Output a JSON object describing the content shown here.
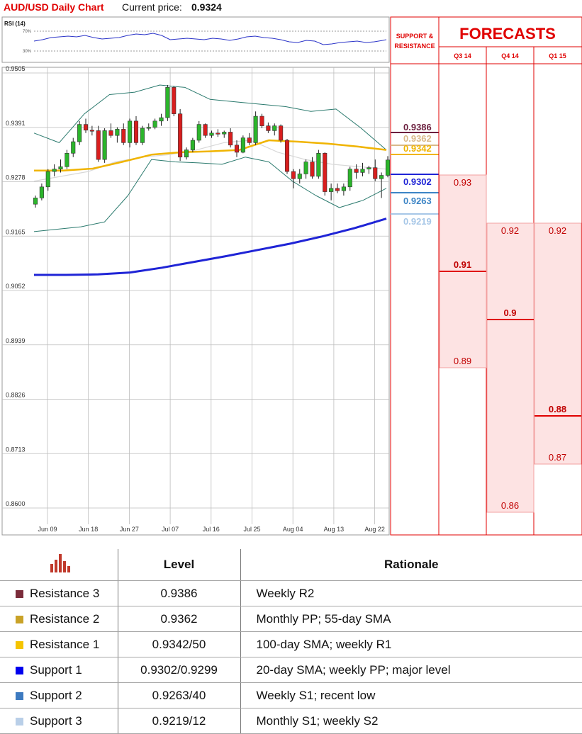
{
  "header": {
    "title": "AUD/USD Daily Chart",
    "price_label": "Current price:",
    "price_value": "0.9324"
  },
  "rsi_panel": {
    "label": "RSI (14)",
    "levels": [
      "70%",
      "30%"
    ]
  },
  "support_resistance_header": "SUPPORT & RESISTANCE",
  "forecasts_title": "FORECASTS",
  "chart_data": [
    {
      "type": "candlestick",
      "title": "AUD/USD Daily Chart",
      "y_ticks": [
        "0.9505",
        "0.9391",
        "0.9278",
        "0.9165",
        "0.9052",
        "0.8939",
        "0.8826",
        "0.8713",
        "0.8600"
      ],
      "ylim": [
        0.86,
        0.9505
      ],
      "x_ticks": [
        "Jun 09",
        "Jun 18",
        "Jun 27",
        "Jul 07",
        "Jul 16",
        "Jul 25",
        "Aug 04",
        "Aug 13",
        "Aug 22"
      ],
      "grid": true,
      "candles": [
        {
          "o": 0.9232,
          "h": 0.925,
          "l": 0.9225,
          "c": 0.9245
        },
        {
          "o": 0.9245,
          "h": 0.9275,
          "l": 0.924,
          "c": 0.9268
        },
        {
          "o": 0.9268,
          "h": 0.9305,
          "l": 0.926,
          "c": 0.93
        },
        {
          "o": 0.93,
          "h": 0.9315,
          "l": 0.929,
          "c": 0.9305
        },
        {
          "o": 0.9305,
          "h": 0.9325,
          "l": 0.9298,
          "c": 0.931
        },
        {
          "o": 0.931,
          "h": 0.9345,
          "l": 0.9305,
          "c": 0.9338
        },
        {
          "o": 0.9338,
          "h": 0.937,
          "l": 0.933,
          "c": 0.9362
        },
        {
          "o": 0.9362,
          "h": 0.9405,
          "l": 0.9355,
          "c": 0.9398
        },
        {
          "o": 0.9398,
          "h": 0.941,
          "l": 0.938,
          "c": 0.9386
        },
        {
          "o": 0.9386,
          "h": 0.9395,
          "l": 0.9375,
          "c": 0.9385
        },
        {
          "o": 0.9385,
          "h": 0.9395,
          "l": 0.932,
          "c": 0.9325
        },
        {
          "o": 0.9325,
          "h": 0.939,
          "l": 0.9318,
          "c": 0.9385
        },
        {
          "o": 0.9385,
          "h": 0.94,
          "l": 0.937,
          "c": 0.9375
        },
        {
          "o": 0.9375,
          "h": 0.9392,
          "l": 0.936,
          "c": 0.9388
        },
        {
          "o": 0.9388,
          "h": 0.94,
          "l": 0.9355,
          "c": 0.936
        },
        {
          "o": 0.936,
          "h": 0.941,
          "l": 0.935,
          "c": 0.9405
        },
        {
          "o": 0.9405,
          "h": 0.9415,
          "l": 0.9355,
          "c": 0.936
        },
        {
          "o": 0.936,
          "h": 0.9395,
          "l": 0.9355,
          "c": 0.939
        },
        {
          "o": 0.939,
          "h": 0.94,
          "l": 0.9385,
          "c": 0.9392
        },
        {
          "o": 0.9392,
          "h": 0.941,
          "l": 0.9388,
          "c": 0.9405
        },
        {
          "o": 0.9405,
          "h": 0.942,
          "l": 0.9395,
          "c": 0.9412
        },
        {
          "o": 0.9412,
          "h": 0.948,
          "l": 0.9405,
          "c": 0.9475
        },
        {
          "o": 0.9475,
          "h": 0.9478,
          "l": 0.9415,
          "c": 0.942
        },
        {
          "o": 0.942,
          "h": 0.943,
          "l": 0.9322,
          "c": 0.933
        },
        {
          "o": 0.933,
          "h": 0.935,
          "l": 0.9325,
          "c": 0.9345
        },
        {
          "o": 0.9345,
          "h": 0.937,
          "l": 0.934,
          "c": 0.9365
        },
        {
          "o": 0.9365,
          "h": 0.9405,
          "l": 0.936,
          "c": 0.9398
        },
        {
          "o": 0.9398,
          "h": 0.94,
          "l": 0.937,
          "c": 0.9375
        },
        {
          "o": 0.9375,
          "h": 0.9385,
          "l": 0.937,
          "c": 0.938
        },
        {
          "o": 0.938,
          "h": 0.9388,
          "l": 0.9372,
          "c": 0.9378
        },
        {
          "o": 0.9378,
          "h": 0.9385,
          "l": 0.937,
          "c": 0.9382
        },
        {
          "o": 0.9382,
          "h": 0.939,
          "l": 0.935,
          "c": 0.9355
        },
        {
          "o": 0.9355,
          "h": 0.9365,
          "l": 0.933,
          "c": 0.934
        },
        {
          "o": 0.934,
          "h": 0.9375,
          "l": 0.9338,
          "c": 0.937
        },
        {
          "o": 0.937,
          "h": 0.938,
          "l": 0.9355,
          "c": 0.936
        },
        {
          "o": 0.936,
          "h": 0.9425,
          "l": 0.9355,
          "c": 0.9415
        },
        {
          "o": 0.9415,
          "h": 0.942,
          "l": 0.939,
          "c": 0.9395
        },
        {
          "o": 0.9395,
          "h": 0.9402,
          "l": 0.938,
          "c": 0.9385
        },
        {
          "o": 0.9385,
          "h": 0.94,
          "l": 0.9375,
          "c": 0.9395
        },
        {
          "o": 0.9395,
          "h": 0.9398,
          "l": 0.936,
          "c": 0.9365
        },
        {
          "o": 0.9365,
          "h": 0.9368,
          "l": 0.9295,
          "c": 0.93
        },
        {
          "o": 0.93,
          "h": 0.9305,
          "l": 0.9265,
          "c": 0.9285
        },
        {
          "o": 0.9285,
          "h": 0.9305,
          "l": 0.9275,
          "c": 0.9295
        },
        {
          "o": 0.9295,
          "h": 0.9325,
          "l": 0.9285,
          "c": 0.932
        },
        {
          "o": 0.932,
          "h": 0.933,
          "l": 0.9285,
          "c": 0.929
        },
        {
          "o": 0.929,
          "h": 0.9345,
          "l": 0.9285,
          "c": 0.9338
        },
        {
          "o": 0.9338,
          "h": 0.934,
          "l": 0.925,
          "c": 0.9258
        },
        {
          "o": 0.9258,
          "h": 0.9275,
          "l": 0.924,
          "c": 0.9265
        },
        {
          "o": 0.9265,
          "h": 0.9275,
          "l": 0.9255,
          "c": 0.926
        },
        {
          "o": 0.926,
          "h": 0.9275,
          "l": 0.925,
          "c": 0.9268
        },
        {
          "o": 0.9268,
          "h": 0.931,
          "l": 0.926,
          "c": 0.9305
        },
        {
          "o": 0.9305,
          "h": 0.9315,
          "l": 0.9285,
          "c": 0.9298
        },
        {
          "o": 0.9298,
          "h": 0.9318,
          "l": 0.929,
          "c": 0.9305
        },
        {
          "o": 0.9305,
          "h": 0.9312,
          "l": 0.9295,
          "c": 0.9308
        },
        {
          "o": 0.9308,
          "h": 0.9325,
          "l": 0.928,
          "c": 0.9285
        },
        {
          "o": 0.9285,
          "h": 0.9298,
          "l": 0.9245,
          "c": 0.9292
        },
        {
          "o": 0.9292,
          "h": 0.9332,
          "l": 0.9288,
          "c": 0.9324
        }
      ],
      "indicators": {
        "sma_200": {
          "color": "#1f24d6",
          "values": [
            0.9085,
            0.9085,
            0.9086,
            0.909,
            0.91,
            0.9112,
            0.9124,
            0.9137,
            0.915,
            0.9165,
            0.9182,
            0.9202
          ]
        },
        "sma_100": {
          "color": "#f0b400",
          "values": [
            0.9302,
            0.9302,
            0.9306,
            0.932,
            0.9335,
            0.934,
            0.9342,
            0.9345,
            0.9365,
            0.9362,
            0.9358,
            0.9352,
            0.9345
          ]
        },
        "bollinger_upper": {
          "color": "#2b7a6e",
          "values": [
            0.938,
            0.936,
            0.942,
            0.946,
            0.9465,
            0.948,
            0.9475,
            0.945,
            0.9445,
            0.944,
            0.9435,
            0.9425,
            0.943,
            0.939,
            0.9345
          ]
        },
        "bollinger_lower": {
          "color": "#2b7a6e",
          "values": [
            0.9175,
            0.918,
            0.9185,
            0.9195,
            0.925,
            0.9325,
            0.932,
            0.9318,
            0.9315,
            0.933,
            0.932,
            0.928,
            0.925,
            0.9225,
            0.924,
            0.9265
          ]
        },
        "bollinger_mid": {
          "color": "#d8d8d8",
          "values": [
            0.928,
            0.929,
            0.93,
            0.932,
            0.933,
            0.9335,
            0.9345,
            0.936,
            0.9365,
            0.934,
            0.9325,
            0.9315,
            0.931,
            0.9305
          ]
        }
      }
    },
    {
      "type": "levels",
      "title": "SUPPORT & RESISTANCE",
      "levels": [
        {
          "value": 0.9386,
          "label": "0.9386",
          "color": "#6b1f3e"
        },
        {
          "value": 0.9362,
          "label": "0.9362",
          "color": "#d9b98a"
        },
        {
          "value": 0.9342,
          "label": "0.9342",
          "color": "#f0b400"
        },
        {
          "value": 0.9302,
          "label": "0.9302",
          "color": "#1f24d6"
        },
        {
          "value": 0.9263,
          "label": "0.9263",
          "color": "#3d85c6"
        },
        {
          "value": 0.9219,
          "label": "0.9219",
          "color": "#a7c7e7"
        }
      ]
    },
    {
      "type": "range",
      "title": "FORECASTS",
      "categories": [
        "Q3 14",
        "Q4 14",
        "Q1 15"
      ],
      "ranges": [
        {
          "high": 0.93,
          "mid": 0.91,
          "low": 0.89,
          "high_label": "0.93",
          "mid_label": "0.91",
          "low_label": "0.89"
        },
        {
          "high": 0.92,
          "mid": 0.9,
          "low": 0.86,
          "high_label": "0.92",
          "mid_label": "0.9",
          "low_label": "0.86"
        },
        {
          "high": 0.92,
          "mid": 0.88,
          "low": 0.87,
          "high_label": "0.92",
          "mid_label": "0.88",
          "low_label": "0.87"
        }
      ]
    }
  ],
  "table": {
    "headers": {
      "level": "Level",
      "rationale": "Rationale"
    },
    "header_icon": "bar-chart-icon",
    "rows": [
      {
        "name": "Resistance 3",
        "level": "0.9386",
        "rationale": "Weekly R2",
        "color": "#7b2c3a"
      },
      {
        "name": "Resistance 2",
        "level": "0.9362",
        "rationale": "Monthly PP; 55-day SMA",
        "color": "#c9a227"
      },
      {
        "name": "Resistance 1",
        "level": "0.9342/50",
        "rationale": "100-day SMA; weekly R1",
        "color": "#f5c400"
      },
      {
        "name": "Support 1",
        "level": "0.9302/0.9299",
        "rationale": "20-day SMA; weekly PP; major level",
        "color": "#0000ee"
      },
      {
        "name": "Support 2",
        "level": "0.9263/40",
        "rationale": "Weekly S1; recent low",
        "color": "#3d7ac0"
      },
      {
        "name": "Support 3",
        "level": "0.9219/12",
        "rationale": "Monthly S1; weekly S2",
        "color": "#b9cfe8"
      }
    ]
  }
}
